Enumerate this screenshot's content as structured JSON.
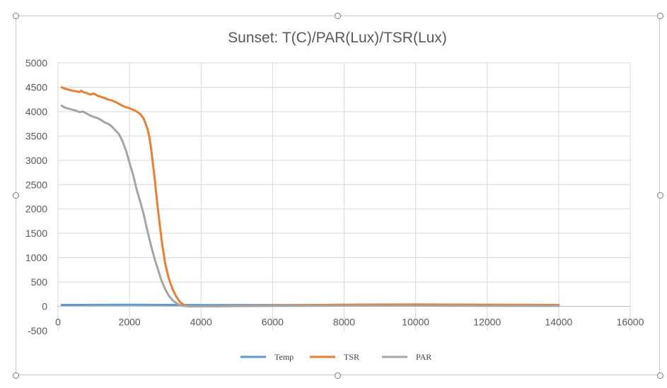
{
  "chart_data": {
    "type": "line",
    "title": "Sunset: T(C)/PAR(Lux)/TSR(Lux)",
    "xlabel": "",
    "ylabel": "",
    "xlim": [
      0,
      16000
    ],
    "ylim": [
      -500,
      5000
    ],
    "x_ticks": [
      0,
      2000,
      4000,
      6000,
      8000,
      10000,
      12000,
      14000,
      16000
    ],
    "y_ticks": [
      -500,
      0,
      500,
      1000,
      1500,
      2000,
      2500,
      3000,
      3500,
      4000,
      4500,
      5000
    ],
    "grid": true,
    "legend": "bottom",
    "series": [
      {
        "name": "Temp",
        "color": "#5b9bd5",
        "points": [
          [
            100,
            30
          ],
          [
            2000,
            32
          ],
          [
            4000,
            28
          ],
          [
            6000,
            28
          ],
          [
            8000,
            27
          ],
          [
            10000,
            26
          ],
          [
            12000,
            26
          ],
          [
            14000,
            25
          ]
        ]
      },
      {
        "name": "TSR",
        "color": "#ed7d31",
        "points": [
          [
            100,
            4500
          ],
          [
            200,
            4470
          ],
          [
            300,
            4450
          ],
          [
            400,
            4430
          ],
          [
            500,
            4420
          ],
          [
            600,
            4400
          ],
          [
            650,
            4430
          ],
          [
            700,
            4400
          ],
          [
            800,
            4380
          ],
          [
            900,
            4350
          ],
          [
            1000,
            4370
          ],
          [
            1100,
            4330
          ],
          [
            1200,
            4300
          ],
          [
            1300,
            4280
          ],
          [
            1400,
            4250
          ],
          [
            1500,
            4230
          ],
          [
            1600,
            4200
          ],
          [
            1700,
            4160
          ],
          [
            1800,
            4120
          ],
          [
            1900,
            4090
          ],
          [
            2000,
            4070
          ],
          [
            2100,
            4040
          ],
          [
            2200,
            4000
          ],
          [
            2300,
            3950
          ],
          [
            2400,
            3850
          ],
          [
            2500,
            3650
          ],
          [
            2550,
            3500
          ],
          [
            2600,
            3250
          ],
          [
            2650,
            2950
          ],
          [
            2700,
            2650
          ],
          [
            2750,
            2300
          ],
          [
            2800,
            1950
          ],
          [
            2850,
            1650
          ],
          [
            2900,
            1350
          ],
          [
            2950,
            1100
          ],
          [
            3000,
            870
          ],
          [
            3100,
            570
          ],
          [
            3200,
            360
          ],
          [
            3300,
            210
          ],
          [
            3400,
            100
          ],
          [
            3500,
            40
          ],
          [
            3600,
            10
          ],
          [
            3800,
            0
          ],
          [
            4000,
            0
          ],
          [
            6000,
            20
          ],
          [
            8000,
            35
          ],
          [
            10000,
            40
          ],
          [
            12000,
            35
          ],
          [
            14000,
            30
          ]
        ]
      },
      {
        "name": "PAR",
        "color": "#a5a5a5",
        "points": [
          [
            100,
            4120
          ],
          [
            200,
            4080
          ],
          [
            300,
            4060
          ],
          [
            400,
            4040
          ],
          [
            500,
            4020
          ],
          [
            600,
            3990
          ],
          [
            700,
            4000
          ],
          [
            800,
            3960
          ],
          [
            900,
            3920
          ],
          [
            1000,
            3890
          ],
          [
            1100,
            3870
          ],
          [
            1200,
            3830
          ],
          [
            1300,
            3780
          ],
          [
            1400,
            3750
          ],
          [
            1500,
            3700
          ],
          [
            1600,
            3620
          ],
          [
            1700,
            3540
          ],
          [
            1800,
            3400
          ],
          [
            1900,
            3200
          ],
          [
            2000,
            2950
          ],
          [
            2100,
            2700
          ],
          [
            2200,
            2400
          ],
          [
            2300,
            2150
          ],
          [
            2400,
            1880
          ],
          [
            2500,
            1550
          ],
          [
            2600,
            1250
          ],
          [
            2700,
            980
          ],
          [
            2800,
            750
          ],
          [
            2900,
            520
          ],
          [
            3000,
            350
          ],
          [
            3100,
            220
          ],
          [
            3200,
            130
          ],
          [
            3300,
            70
          ],
          [
            3400,
            30
          ],
          [
            3500,
            10
          ],
          [
            3700,
            0
          ],
          [
            4000,
            0
          ],
          [
            6000,
            10
          ],
          [
            8000,
            15
          ],
          [
            10000,
            15
          ],
          [
            12000,
            12
          ],
          [
            14000,
            10
          ]
        ]
      }
    ]
  }
}
